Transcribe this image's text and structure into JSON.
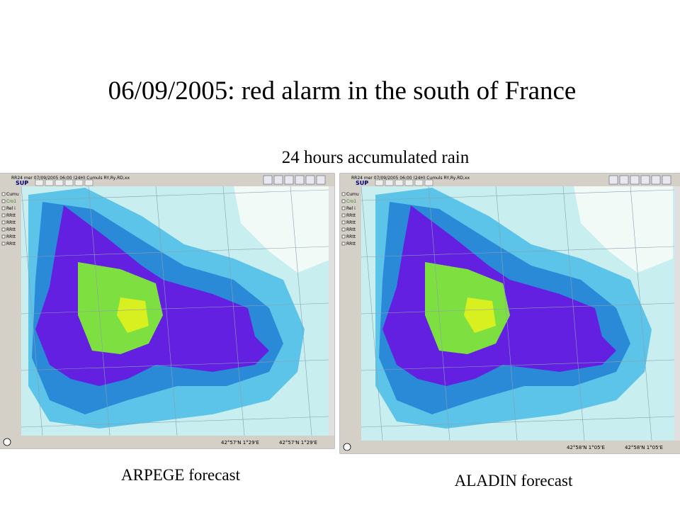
{
  "slide": {
    "title": "06/09/2005: red alarm in the south of France",
    "subtitle": "24 hours accumulated rain"
  },
  "panels": [
    {
      "caption": "ARPEGE forecast",
      "toolbar_title": "RR24 mer 07/09/2005 06:00 (24H) Cumuls RY,Ry,RD,xx",
      "toolbar_button": "SUP",
      "menu": [
        "Cumu",
        "Cro1",
        "Rel i",
        "RRtt",
        "RRtt",
        "RRtt",
        "RRtt",
        "RRtt"
      ],
      "coordinates": [
        "42°57'N 1°29'E",
        "42°57'N 1°29'E"
      ]
    },
    {
      "caption": "ALADIN forecast",
      "toolbar_title": "RR24 mer 07/09/2005 06:00 (24H) Cumuls RY,Ry,RD,xx",
      "toolbar_button": "SUP",
      "menu": [
        "Cumu",
        "Cro1",
        "Rel i",
        "RRtt",
        "RRtt",
        "RRtt",
        "RRtt",
        "RRtt"
      ],
      "coordinates": [
        "42°58'N 1°05'E",
        "42°58'N 1°05'E"
      ]
    }
  ]
}
